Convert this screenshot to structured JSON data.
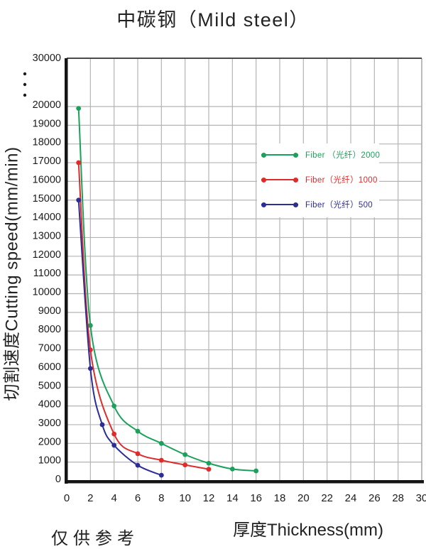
{
  "title": "中碳钢（Mild steel）",
  "footnote": "仅供参考",
  "chart_data": {
    "type": "line",
    "title": "中碳钢（Mild steel）",
    "xlabel": "厚度Thickness(mm)",
    "ylabel": "切割速度Cutting speed(mm/min)",
    "xlim": [
      0,
      30
    ],
    "ylim": [
      0,
      20000
    ],
    "y_break_label": 30000,
    "grid": true,
    "legend_position": "inside-upper-right",
    "xticks": [
      0,
      2,
      4,
      6,
      8,
      10,
      12,
      14,
      16,
      18,
      20,
      22,
      24,
      26,
      28,
      30
    ],
    "yticks": [
      0,
      1000,
      2000,
      3000,
      4000,
      5000,
      6000,
      7000,
      8000,
      9000,
      10000,
      11000,
      12000,
      13000,
      14000,
      15000,
      16000,
      17000,
      18000,
      19000,
      20000
    ],
    "series": [
      {
        "name": "Fiber （光纤）2000",
        "color": "#1ba15c",
        "x": [
          1,
          2,
          4,
          6,
          8,
          10,
          12,
          14,
          16
        ],
        "y": [
          19900,
          8300,
          4000,
          2650,
          2000,
          1400,
          940,
          630,
          530
        ]
      },
      {
        "name": "Fiber（光纤）1000",
        "color": "#e02b2b",
        "x": [
          1,
          2,
          4,
          6,
          8,
          10,
          12
        ],
        "y": [
          17000,
          7000,
          2500,
          1450,
          1100,
          850,
          620
        ]
      },
      {
        "name": "Fiber（光纤）500",
        "color": "#2d2d96",
        "x": [
          1,
          2,
          3,
          4,
          6,
          8
        ],
        "y": [
          15000,
          6000,
          3000,
          1900,
          830,
          300
        ]
      }
    ]
  }
}
